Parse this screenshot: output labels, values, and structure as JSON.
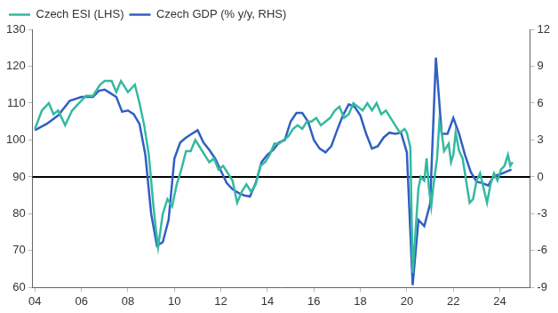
{
  "chart_data": {
    "type": "line",
    "legend": "top-left",
    "grid": false,
    "xlim": [
      2003.9,
      2025.3
    ],
    "xticks": [
      {
        "value": 2004,
        "label": "04"
      },
      {
        "value": 2006,
        "label": "06"
      },
      {
        "value": 2008,
        "label": "08"
      },
      {
        "value": 2010,
        "label": "10"
      },
      {
        "value": 2012,
        "label": "12"
      },
      {
        "value": 2014,
        "label": "14"
      },
      {
        "value": 2016,
        "label": "16"
      },
      {
        "value": 2018,
        "label": "18"
      },
      {
        "value": 2020,
        "label": "20"
      },
      {
        "value": 2022,
        "label": "22"
      },
      {
        "value": 2024,
        "label": "24"
      }
    ],
    "ylim": [
      60,
      130
    ],
    "yticks": [
      60,
      70,
      80,
      90,
      100,
      110,
      120,
      130
    ],
    "y2lim": [
      -9,
      12
    ],
    "y2ticks": [
      -9,
      -6,
      -3,
      0,
      3,
      6,
      9,
      12
    ],
    "reference_line": {
      "value": 90,
      "axis": "y",
      "color": "#000000"
    },
    "series": [
      {
        "name": "Czech ESI (LHS)",
        "color": "#35b9a0",
        "axis": "y",
        "x": [
          2004.0,
          2004.3,
          2004.6,
          2004.8,
          2005.0,
          2005.3,
          2005.6,
          2005.9,
          2006.2,
          2006.5,
          2006.8,
          2007.0,
          2007.3,
          2007.5,
          2007.7,
          2008.0,
          2008.3,
          2008.5,
          2008.7,
          2008.9,
          2009.1,
          2009.2,
          2009.3,
          2009.5,
          2009.7,
          2009.9,
          2010.1,
          2010.3,
          2010.5,
          2010.7,
          2010.9,
          2011.1,
          2011.3,
          2011.5,
          2011.7,
          2011.9,
          2012.1,
          2012.3,
          2012.5,
          2012.7,
          2012.9,
          2013.1,
          2013.3,
          2013.5,
          2013.7,
          2013.9,
          2014.1,
          2014.3,
          2014.5,
          2014.7,
          2014.9,
          2015.1,
          2015.3,
          2015.5,
          2015.7,
          2015.9,
          2016.1,
          2016.3,
          2016.5,
          2016.7,
          2016.9,
          2017.1,
          2017.3,
          2017.5,
          2017.7,
          2017.9,
          2018.1,
          2018.3,
          2018.5,
          2018.7,
          2018.9,
          2019.1,
          2019.3,
          2019.5,
          2019.7,
          2019.9,
          2020.0,
          2020.15,
          2020.25,
          2020.35,
          2020.5,
          2020.6,
          2020.75,
          2020.85,
          2020.95,
          2021.05,
          2021.15,
          2021.3,
          2021.4,
          2021.5,
          2021.6,
          2021.8,
          2021.9,
          2022.0,
          2022.1,
          2022.25,
          2022.4,
          2022.55,
          2022.7,
          2022.85,
          2023.0,
          2023.15,
          2023.3,
          2023.45,
          2023.6,
          2023.75,
          2023.9,
          2024.05,
          2024.2,
          2024.35,
          2024.45,
          2024.55
        ],
        "values": [
          103,
          108,
          110,
          107,
          108,
          104,
          108,
          110,
          112,
          112,
          115,
          116,
          116,
          113,
          116,
          113,
          115,
          110,
          104,
          96,
          82,
          76,
          71,
          80,
          84,
          82,
          88,
          92,
          97,
          97,
          100,
          98,
          96,
          94,
          95,
          92,
          93,
          91,
          89,
          83,
          86,
          88,
          86,
          88,
          93,
          94,
          96,
          99,
          99,
          100,
          101,
          103,
          104,
          103,
          105,
          105,
          106,
          104,
          105,
          106,
          108,
          109,
          106,
          107,
          110,
          109,
          108,
          110,
          108,
          110,
          107,
          108,
          106,
          104,
          102,
          103,
          102,
          98,
          64,
          73,
          87,
          90,
          89,
          95,
          87,
          82,
          88,
          95,
          105,
          102,
          97,
          99,
          94,
          96,
          102,
          97,
          95,
          89,
          83,
          84,
          89,
          91,
          87,
          83,
          88,
          91,
          89,
          92,
          93,
          96,
          93,
          94
        ]
      },
      {
        "name": "Czech GDP (% y/y, RHS)",
        "color": "#2f5fc4",
        "axis": "y2",
        "x": [
          2004.0,
          2004.5,
          2005.0,
          2005.5,
          2006.0,
          2006.5,
          2006.75,
          2007.0,
          2007.25,
          2007.5,
          2007.75,
          2008.0,
          2008.25,
          2008.5,
          2008.75,
          2009.0,
          2009.25,
          2009.5,
          2009.75,
          2010.0,
          2010.25,
          2010.5,
          2010.75,
          2011.0,
          2011.25,
          2011.5,
          2011.75,
          2012.0,
          2012.25,
          2012.5,
          2012.75,
          2013.0,
          2013.25,
          2013.5,
          2013.75,
          2014.0,
          2014.25,
          2014.5,
          2014.75,
          2015.0,
          2015.25,
          2015.5,
          2015.75,
          2016.0,
          2016.25,
          2016.5,
          2016.75,
          2017.0,
          2017.25,
          2017.5,
          2017.75,
          2018.0,
          2018.25,
          2018.5,
          2018.75,
          2019.0,
          2019.25,
          2019.5,
          2019.75,
          2020.0,
          2020.25,
          2020.5,
          2020.75,
          2021.0,
          2021.25,
          2021.5,
          2021.75,
          2022.0,
          2022.25,
          2022.5,
          2022.75,
          2023.0,
          2023.25,
          2023.5,
          2023.75,
          2024.0,
          2024.25,
          2024.5
        ],
        "values": [
          3.8,
          4.3,
          5.0,
          6.2,
          6.5,
          6.5,
          7.0,
          7.1,
          6.8,
          6.5,
          5.3,
          5.4,
          5.1,
          4.3,
          1.8,
          -3.0,
          -5.6,
          -5.3,
          -3.5,
          1.5,
          2.8,
          3.2,
          3.5,
          3.8,
          2.8,
          2.2,
          1.5,
          0.5,
          -0.5,
          -1.0,
          -1.3,
          -1.5,
          -1.6,
          -0.5,
          1.2,
          1.8,
          2.2,
          2.8,
          3.0,
          4.5,
          5.2,
          5.2,
          4.5,
          3.0,
          2.3,
          2.0,
          2.5,
          3.8,
          5.0,
          5.9,
          5.7,
          5.0,
          3.5,
          2.3,
          2.5,
          3.2,
          3.6,
          3.5,
          3.6,
          2.0,
          -8.8,
          -3.5,
          -4.0,
          -2.2,
          9.7,
          3.5,
          3.5,
          4.8,
          3.5,
          1.8,
          0.4,
          -0.4,
          -0.5,
          -0.7,
          0.1,
          0.2,
          0.4,
          0.6
        ]
      }
    ]
  }
}
